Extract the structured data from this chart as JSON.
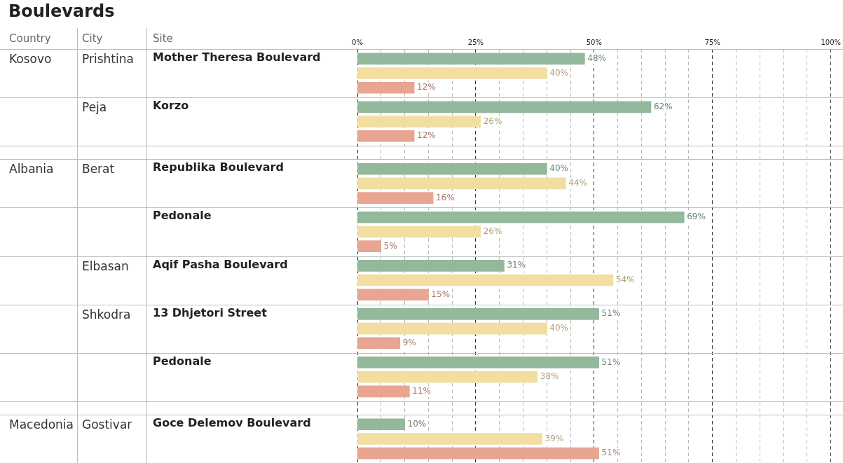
{
  "chart_data": {
    "type": "bar",
    "orientation": "horizontal",
    "title": "Boulevards",
    "categories": [
      "Mother Theresa Boulevard",
      "Korzo",
      "Republika Boulevard",
      "Pedonale",
      "Aqif Pasha Boulevard",
      "13 Dhjetori Street",
      "Pedonale",
      "Goce Delemov Boulevard"
    ],
    "series": [
      {
        "color": "#93b89b",
        "values": [
          48,
          62,
          40,
          69,
          31,
          51,
          51,
          10
        ],
        "value_labels": [
          "48%",
          "62%",
          "40%",
          "69%",
          "31%",
          "51%",
          "51%",
          "10%"
        ]
      },
      {
        "color": "#f2dea0",
        "values": [
          40,
          26,
          44,
          26,
          54,
          40,
          38,
          39
        ],
        "value_labels": [
          "40%",
          "26%",
          "44%",
          "26%",
          "54%",
          "40%",
          "38%",
          "39%"
        ]
      },
      {
        "color": "#e8a592",
        "values": [
          12,
          12,
          16,
          5,
          15,
          9,
          11,
          51
        ],
        "value_labels": [
          "12%",
          "12%",
          "16%",
          "5%",
          "15%",
          "9%",
          "11%",
          "51%"
        ]
      }
    ],
    "xlim": [
      0,
      100
    ],
    "xticks": [
      {
        "value": 0,
        "label": "0%"
      },
      {
        "value": 5,
        "label": null
      },
      {
        "value": 10,
        "label": null
      },
      {
        "value": 15,
        "label": null
      },
      {
        "value": 20,
        "label": null
      },
      {
        "value": 25,
        "label": "25%"
      },
      {
        "value": 30,
        "label": null
      },
      {
        "value": 35,
        "label": null
      },
      {
        "value": 40,
        "label": null
      },
      {
        "value": 45,
        "label": null
      },
      {
        "value": 50,
        "label": "50%"
      },
      {
        "value": 55,
        "label": null
      },
      {
        "value": 60,
        "label": null
      },
      {
        "value": 65,
        "label": null
      },
      {
        "value": 70,
        "label": null
      },
      {
        "value": 75,
        "label": "75%"
      },
      {
        "value": 80,
        "label": null
      },
      {
        "value": 85,
        "label": null
      },
      {
        "value": 90,
        "label": null
      },
      {
        "value": 95,
        "label": null
      },
      {
        "value": 100,
        "label": "100%"
      }
    ],
    "grid": "x",
    "legend": false,
    "annotations": [
      "Country",
      "City",
      "Site",
      "Kosovo",
      "Prishtina",
      "Peja",
      "Albania",
      "Berat",
      "Elbasan",
      "Shkodra",
      "Macedonia",
      "Gostivar"
    ]
  }
}
